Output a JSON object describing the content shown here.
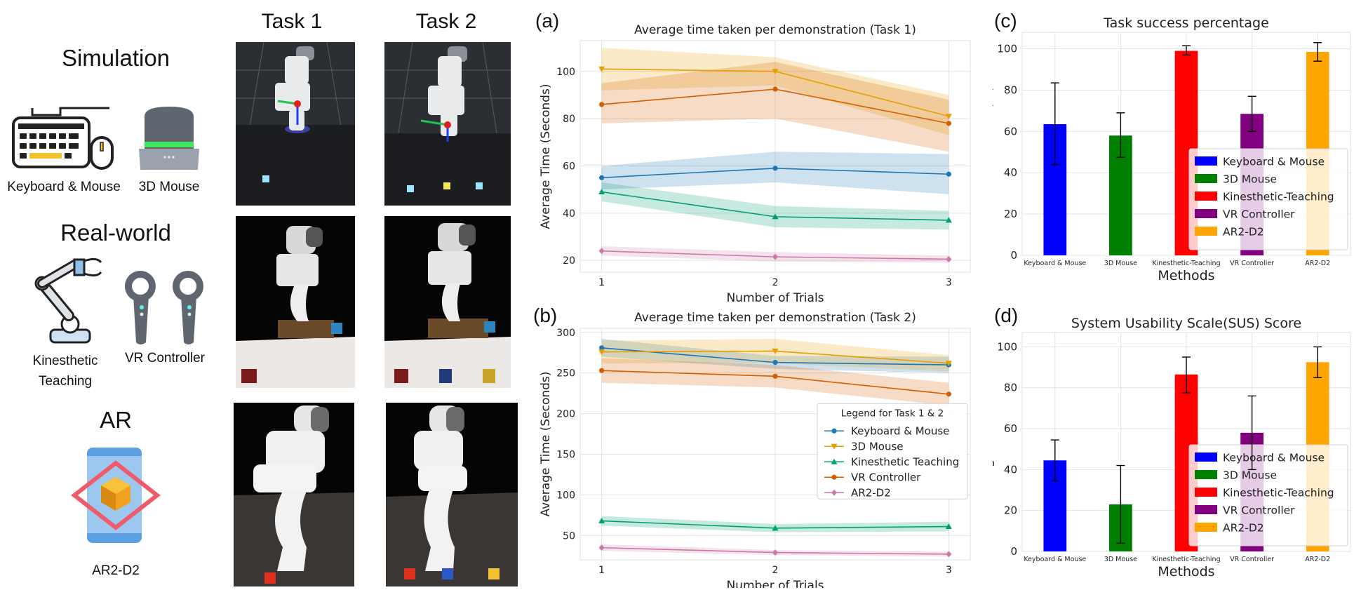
{
  "left": {
    "simulation_title": "Simulation",
    "realworld_title": "Real-world",
    "ar_title": "AR",
    "devices": {
      "keyboard_mouse": "Keyboard & Mouse",
      "mouse3d": "3D Mouse",
      "kinesthetic_line1": "Kinesthetic",
      "kinesthetic_line2": "Teaching",
      "vr_controller": "VR Controller",
      "ar2d2": "AR2-D2"
    }
  },
  "photos": {
    "task1_header": "Task 1",
    "task2_header": "Task 2"
  },
  "panels": {
    "a": "(a)",
    "b": "(b)",
    "c": "(c)",
    "d": "(d)"
  },
  "legend_title": "Legend for Task 1 & 2",
  "colors": {
    "km_line": "#1f77b4",
    "mouse3d_line": "#e69f00",
    "kin_line": "#009e73",
    "vr_line": "#d55e00",
    "ar_line": "#cc79a7",
    "bar_km": "#0000ff",
    "bar_3d": "#008000",
    "bar_kin": "#ff0000",
    "bar_vr": "#800080",
    "bar_ar": "#ffa500"
  },
  "chart_data": [
    {
      "type": "line",
      "title": "Average time taken per demonstration (Task 1)",
      "xlabel": "Number of Trials",
      "ylabel": "Average Time (Seconds)",
      "x": [
        1,
        2,
        3
      ],
      "ylim": [
        15,
        113
      ],
      "yticks": [
        20,
        40,
        60,
        80,
        100
      ],
      "grid": true,
      "series": [
        {
          "name": "Keyboard & Mouse",
          "values": [
            55,
            59,
            56.5
          ],
          "band": [
            [
              50,
              60
            ],
            [
              53,
              66
            ],
            [
              48,
              65
            ]
          ],
          "color_key": "km_line",
          "marker": "circle"
        },
        {
          "name": "3D Mouse",
          "values": [
            101,
            100,
            81
          ],
          "band": [
            [
              92,
              110
            ],
            [
              94,
              106
            ],
            [
              73,
              90
            ]
          ],
          "color_key": "mouse3d_line",
          "marker": "triangle-down"
        },
        {
          "name": "Kinesthetic Teaching",
          "values": [
            49,
            38.5,
            37
          ],
          "band": [
            [
              45,
              53
            ],
            [
              34,
              43
            ],
            [
              33,
              41
            ]
          ],
          "color_key": "kin_line",
          "marker": "triangle-up"
        },
        {
          "name": "VR Controller",
          "values": [
            86,
            92.5,
            78
          ],
          "band": [
            [
              78,
              95
            ],
            [
              80,
              104
            ],
            [
              66,
              88
            ]
          ],
          "color_key": "vr_line",
          "marker": "circle"
        },
        {
          "name": "AR2-D2",
          "values": [
            24,
            21.5,
            20.5
          ],
          "band": [
            [
              22,
              26
            ],
            [
              19.5,
              23.5
            ],
            [
              19,
              22
            ]
          ],
          "color_key": "ar_line",
          "marker": "diamond"
        }
      ]
    },
    {
      "type": "line",
      "title": "Average time taken per demonstration (Task 2)",
      "xlabel": "Number of Trials",
      "ylabel": "Average Time (Seconds)",
      "x": [
        1,
        2,
        3
      ],
      "ylim": [
        20,
        305
      ],
      "yticks": [
        50,
        100,
        150,
        200,
        250,
        300
      ],
      "grid": true,
      "legend_position": "center-right",
      "series": [
        {
          "name": "Keyboard & Mouse",
          "values": [
            281,
            263,
            260
          ],
          "band": [
            [
              270,
              292
            ],
            [
              255,
              271
            ],
            [
              250,
              270
            ]
          ],
          "color_key": "km_line",
          "marker": "circle"
        },
        {
          "name": "3D Mouse",
          "values": [
            276,
            277,
            262
          ],
          "band": [
            [
              262,
              290
            ],
            [
              262,
              292
            ],
            [
              252,
              272
            ]
          ],
          "color_key": "mouse3d_line",
          "marker": "triangle-down"
        },
        {
          "name": "Kinesthetic Teaching",
          "values": [
            68,
            59,
            61
          ],
          "band": [
            [
              62,
              74
            ],
            [
              54,
              64
            ],
            [
              55,
              67
            ]
          ],
          "color_key": "kin_line",
          "marker": "triangle-up"
        },
        {
          "name": "VR Controller",
          "values": [
            253,
            246,
            224
          ],
          "band": [
            [
              238,
              268
            ],
            [
              232,
              260
            ],
            [
              210,
              238
            ]
          ],
          "color_key": "vr_line",
          "marker": "circle"
        },
        {
          "name": "AR2-D2",
          "values": [
            35,
            29,
            27
          ],
          "band": [
            [
              31,
              39
            ],
            [
              26,
              32
            ],
            [
              24,
              30
            ]
          ],
          "color_key": "ar_line",
          "marker": "diamond"
        }
      ]
    },
    {
      "type": "bar",
      "title": "Task success percentage",
      "xlabel": "Methods",
      "ylabel": "Success Rate (%)",
      "categories": [
        "Keyboard & Mouse",
        "3D Mouse",
        "Kinesthetic-Teaching",
        "VR Controller",
        "AR2-D2"
      ],
      "values": [
        63.5,
        58,
        99,
        68.5,
        98.5
      ],
      "errors": [
        [
          44,
          83.5
        ],
        [
          47.5,
          69
        ],
        [
          97,
          101.5
        ],
        [
          60,
          77
        ],
        [
          94,
          103
        ]
      ],
      "ylim": [
        0,
        108
      ],
      "yticks": [
        0,
        20,
        40,
        60,
        80,
        100
      ],
      "grid": true,
      "legend_position": "lower-right",
      "color_keys": [
        "bar_km",
        "bar_3d",
        "bar_kin",
        "bar_vr",
        "bar_ar"
      ]
    },
    {
      "type": "bar",
      "title": "System Usability Scale(SUS) Score",
      "xlabel": "Methods",
      "ylabel": "Average SUS Score",
      "categories": [
        "Keyboard & Mouse",
        "3D Mouse",
        "Kinesthetic-Teaching",
        "VR Controller",
        "AR2-D2"
      ],
      "values": [
        44.5,
        23,
        86.5,
        58,
        92.5
      ],
      "errors": [
        [
          34.5,
          54.5
        ],
        [
          4,
          42
        ],
        [
          77.5,
          95
        ],
        [
          40,
          76
        ],
        [
          85,
          100
        ]
      ],
      "ylim": [
        0,
        107
      ],
      "yticks": [
        0,
        20,
        40,
        60,
        80,
        100
      ],
      "grid": true,
      "legend_position": "lower-right",
      "color_keys": [
        "bar_km",
        "bar_3d",
        "bar_kin",
        "bar_vr",
        "bar_ar"
      ]
    }
  ]
}
